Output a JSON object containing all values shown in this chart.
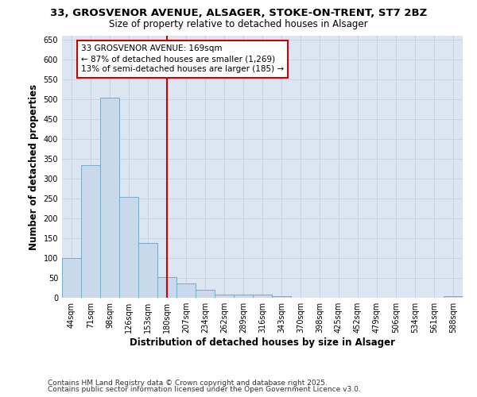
{
  "title_line1": "33, GROSVENOR AVENUE, ALSAGER, STOKE-ON-TRENT, ST7 2BZ",
  "title_line2": "Size of property relative to detached houses in Alsager",
  "xlabel": "Distribution of detached houses by size in Alsager",
  "ylabel": "Number of detached properties",
  "categories": [
    "44sqm",
    "71sqm",
    "98sqm",
    "126sqm",
    "153sqm",
    "180sqm",
    "207sqm",
    "234sqm",
    "262sqm",
    "289sqm",
    "316sqm",
    "343sqm",
    "370sqm",
    "398sqm",
    "425sqm",
    "452sqm",
    "479sqm",
    "506sqm",
    "534sqm",
    "561sqm",
    "588sqm"
  ],
  "values": [
    100,
    335,
    505,
    255,
    138,
    53,
    37,
    21,
    9,
    9,
    9,
    5,
    0,
    0,
    0,
    0,
    0,
    0,
    0,
    0,
    5
  ],
  "bar_color": "#c9d9eb",
  "bar_edge_color": "#7aaac8",
  "vline_pos": 5.0,
  "annotation_text_line1": "33 GROSVENOR AVENUE: 169sqm",
  "annotation_text_line2": "← 87% of detached houses are smaller (1,269)",
  "annotation_text_line3": "13% of semi-detached houses are larger (185) →",
  "annotation_box_facecolor": "#ffffff",
  "annotation_box_edgecolor": "#cc0000",
  "vline_color": "#cc0000",
  "ylim": [
    0,
    660
  ],
  "yticks": [
    0,
    50,
    100,
    150,
    200,
    250,
    300,
    350,
    400,
    450,
    500,
    550,
    600,
    650
  ],
  "grid_color": "#c8d4e4",
  "plot_bg_color": "#dce6f2",
  "footer_line1": "Contains HM Land Registry data © Crown copyright and database right 2025.",
  "footer_line2": "Contains public sector information licensed under the Open Government Licence v3.0.",
  "title_fontsize": 9.5,
  "subtitle_fontsize": 8.5,
  "axis_label_fontsize": 8.5,
  "tick_fontsize": 7,
  "annotation_fontsize": 7.5,
  "footer_fontsize": 6.5
}
